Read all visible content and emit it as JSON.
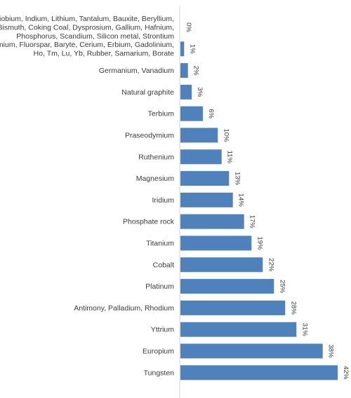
{
  "chart_data": {
    "type": "bar",
    "orientation": "horizontal",
    "title": "",
    "xlabel": "",
    "ylabel": "",
    "xlim": [
      0,
      42
    ],
    "grid": false,
    "legend": "none",
    "bar_color": "#4f81bd",
    "value_format": "percent",
    "categories": [
      [
        "Niobium, Indium, Lithium, Tantalum, Bauxite, Beryllium,",
        "Bismuth, Coking Coal, Dysprosium, Gallium, Hafnium,",
        "Phosphorus, Scandium, Silicon metal, Strontium"
      ],
      [
        "Neodymium, Fluorspar, Baryte, Cerium, Erbium, Gadolinium,",
        "Ho, Tm, Lu, Yb, Rubber, Samarium, Borate"
      ],
      [
        "Germanium, Vanadium"
      ],
      [
        "Natural graphite"
      ],
      [
        "Terbium"
      ],
      [
        "Praseodymium"
      ],
      [
        "Ruthenium"
      ],
      [
        "Magnesium"
      ],
      [
        "Iridium"
      ],
      [
        "Phosphate rock"
      ],
      [
        "Titanium"
      ],
      [
        "Cobalt"
      ],
      [
        "Platinum"
      ],
      [
        "Antimony, Palladium, Rhodium"
      ],
      [
        "Yttrium"
      ],
      [
        "Europium"
      ],
      [
        "Tungsten"
      ]
    ],
    "values": [
      0,
      1,
      2,
      3,
      6,
      10,
      11,
      13,
      14,
      17,
      19,
      22,
      25,
      28,
      31,
      38,
      42
    ],
    "value_labels": [
      "0%",
      "1%",
      "2%",
      "3%",
      "6%",
      "10%",
      "11%",
      "13%",
      "14%",
      "17%",
      "19%",
      "22%",
      "25%",
      "28%",
      "31%",
      "38%",
      "42%"
    ]
  }
}
